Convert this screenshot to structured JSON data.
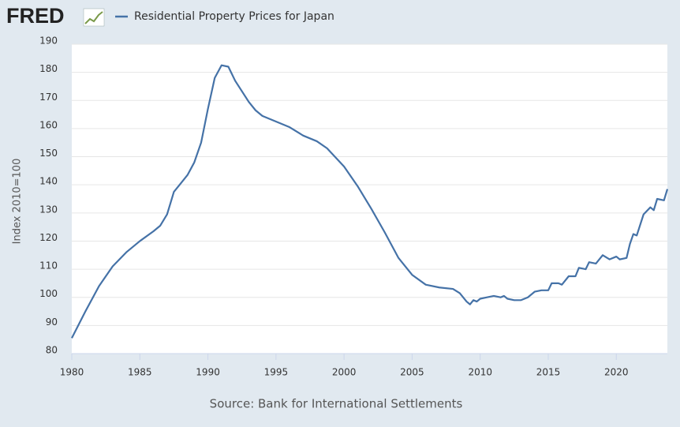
{
  "brand": "FRED",
  "chart_data": {
    "type": "line",
    "y_label": "Index 2010=100",
    "source": "Source: Bank for International Settlements",
    "x": [
      1980,
      1981,
      1982,
      1983,
      1984,
      1985,
      1986,
      1986.5,
      1987,
      1987.5,
      1988,
      1988.5,
      1989,
      1989.5,
      1990,
      1990.5,
      1991,
      1991.5,
      1992,
      1993,
      1993.5,
      1994,
      1995,
      1996,
      1997,
      1998,
      1998.75,
      2000,
      2001,
      2002,
      2003,
      2004,
      2005,
      2006,
      2007,
      2008,
      2008.5,
      2009,
      2009.25,
      2009.5,
      2009.75,
      2010,
      2010.5,
      2011,
      2011.5,
      2011.75,
      2012,
      2012.5,
      2013,
      2013.5,
      2014,
      2014.5,
      2015,
      2015.25,
      2015.75,
      2016,
      2016.5,
      2017,
      2017.25,
      2017.75,
      2018,
      2018.5,
      2019,
      2019.5,
      2020,
      2020.25,
      2020.75,
      2021,
      2021.25,
      2021.5,
      2022,
      2022.5,
      2022.75,
      2023,
      2023.5,
      2023.75
    ],
    "series": [
      {
        "name": "Residential Property Prices for Japan",
        "color": "#4572a7",
        "values": [
          85.5,
          95,
          104,
          111,
          116,
          120,
          123.5,
          125.5,
          129.5,
          137.5,
          140.5,
          143.5,
          148,
          155,
          167,
          178,
          182.5,
          182,
          177,
          169.5,
          166.5,
          164.5,
          162.5,
          160.5,
          157.5,
          155.5,
          153,
          146.5,
          139.5,
          131.5,
          123,
          114,
          108,
          104.5,
          103.5,
          103,
          101.5,
          98.5,
          97.5,
          99,
          98.5,
          99.5,
          100,
          100.5,
          100,
          100.5,
          99.5,
          99,
          99,
          100,
          102,
          102.5,
          102.5,
          105,
          105,
          104.5,
          107.5,
          107.5,
          110.5,
          110,
          112.5,
          112,
          115,
          113.5,
          114.5,
          113.5,
          114,
          119,
          122.5,
          122,
          129.5,
          132,
          131,
          135,
          134.5,
          138.5
        ]
      }
    ],
    "xlim": [
      1980,
      2023.75
    ],
    "xticks": [
      1980,
      1985,
      1990,
      1995,
      2000,
      2005,
      2010,
      2015,
      2020
    ],
    "ylim": [
      80,
      190
    ],
    "yticks": [
      80,
      90,
      100,
      110,
      120,
      130,
      140,
      150,
      160,
      170,
      180,
      190
    ],
    "grid": true
  }
}
